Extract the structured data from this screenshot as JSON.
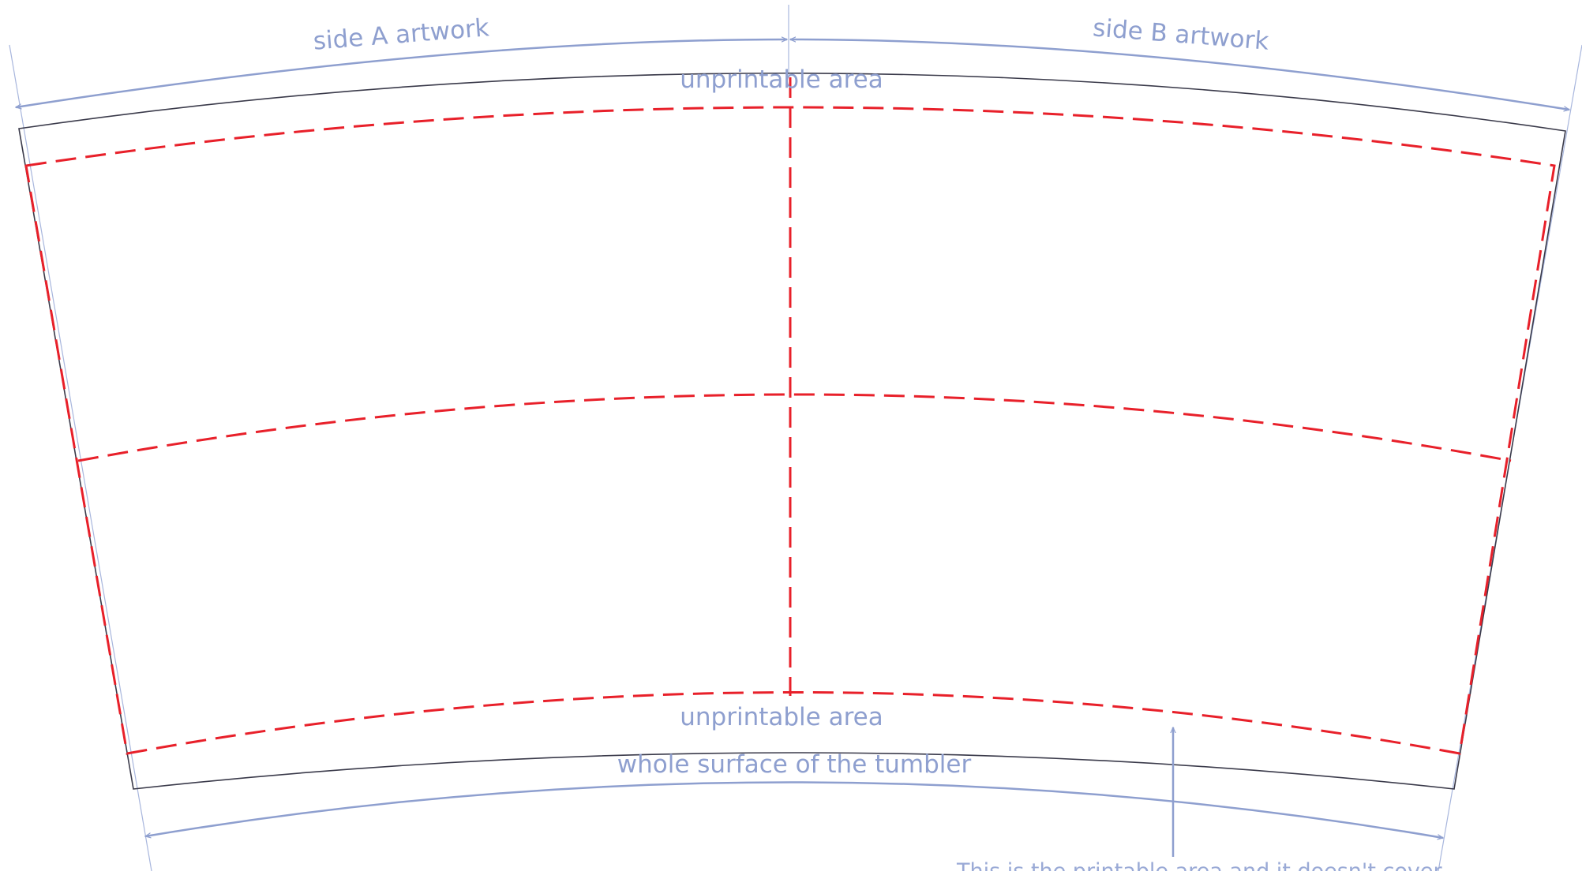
{
  "diagram": {
    "labels": {
      "side_a": "side A artwork",
      "side_b": "side B artwork",
      "unprintable_top": "unprintable area",
      "unprintable_bottom": "unprintable area",
      "whole_surface": "whole surface of the tumbler",
      "note": "This is the printable area and it doesn't cover"
    },
    "colors": {
      "outline": "#3a3a4a",
      "printable_dashed": "#e8202a",
      "annotation": "#8e9fcf"
    }
  }
}
